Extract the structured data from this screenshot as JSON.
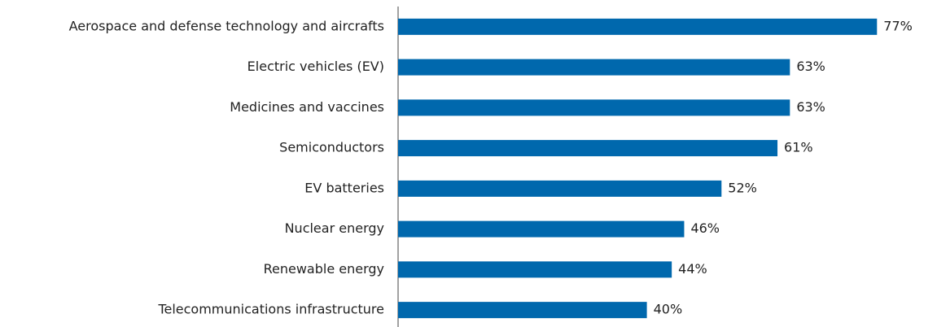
{
  "chart_data": {
    "type": "bar",
    "orientation": "horizontal",
    "categories": [
      "Aerospace and defense technology and aircrafts",
      "Electric vehicles (EV)",
      "Medicines and vaccines",
      "Semiconductors",
      "EV batteries",
      "Nuclear energy",
      "Renewable energy",
      "Telecommunications infrastructure"
    ],
    "values": [
      77,
      63,
      63,
      61,
      52,
      46,
      44,
      40
    ],
    "value_labels": [
      "77%",
      "63%",
      "63%",
      "61%",
      "52%",
      "46%",
      "44%",
      "40%"
    ],
    "color": "#0068ad",
    "xlim": [
      0,
      100
    ]
  }
}
